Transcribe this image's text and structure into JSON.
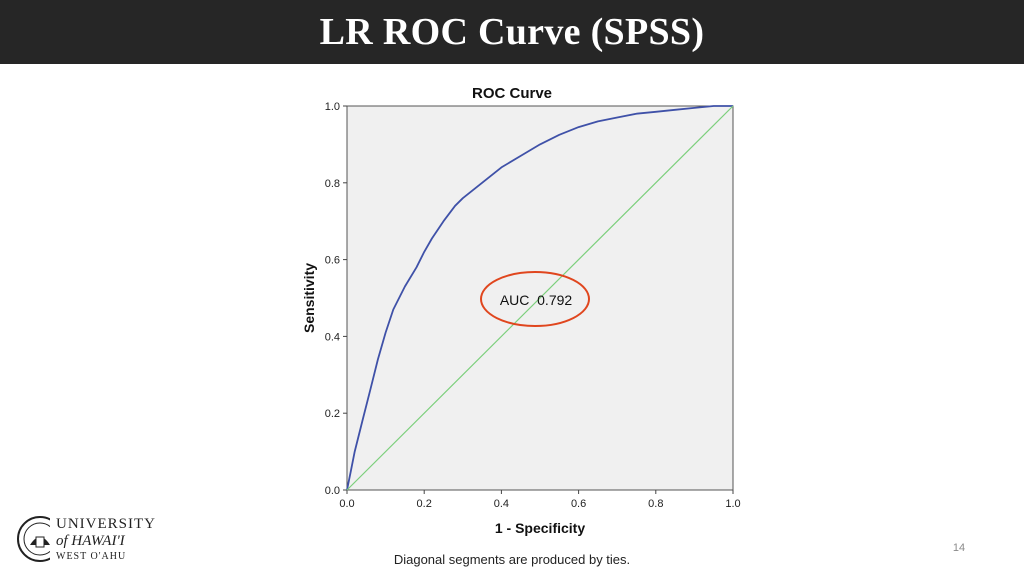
{
  "slide": {
    "title": "LR ROC Curve (SPSS)",
    "page_number": "14"
  },
  "logo": {
    "line1": "UNIVERSITY",
    "line2": "of HAWAI'I",
    "line3": "WEST O'AHU"
  },
  "colors": {
    "title_bar": "#262626",
    "plot_background": "#f0f0f0",
    "roc_curve": "#3f51a8",
    "reference_line": "#7ccf7c",
    "highlight_ellipse": "#e0461e"
  },
  "chart_data": {
    "type": "line",
    "title": "ROC Curve",
    "xlabel": "1 - Specificity",
    "ylabel": "Sensitivity",
    "xlim": [
      0,
      1
    ],
    "ylim": [
      0,
      1
    ],
    "x_ticks": [
      "0.0",
      "0.2",
      "0.4",
      "0.6",
      "0.8",
      "1.0"
    ],
    "y_ticks": [
      "0.0",
      "0.2",
      "0.4",
      "0.6",
      "0.8",
      "1.0"
    ],
    "grid": false,
    "footnote": "Diagonal segments are produced by ties.",
    "annotation": "AUC  0.792",
    "series": [
      {
        "x": [
          0,
          0.01,
          0.02,
          0.04,
          0.06,
          0.08,
          0.1,
          0.12,
          0.15,
          0.18,
          0.2,
          0.22,
          0.25,
          0.28,
          0.3,
          0.35,
          0.4,
          0.45,
          0.5,
          0.55,
          0.6,
          0.65,
          0.7,
          0.75,
          0.8,
          0.85,
          0.9,
          0.95,
          1.0
        ],
        "values": [
          0,
          0.05,
          0.1,
          0.18,
          0.26,
          0.34,
          0.41,
          0.47,
          0.53,
          0.58,
          0.62,
          0.655,
          0.7,
          0.74,
          0.76,
          0.8,
          0.84,
          0.87,
          0.9,
          0.925,
          0.945,
          0.96,
          0.97,
          0.98,
          0.985,
          0.99,
          0.995,
          1.0,
          1.0
        ]
      },
      {
        "x": [
          0,
          1
        ],
        "values": [
          0,
          1
        ]
      }
    ]
  }
}
